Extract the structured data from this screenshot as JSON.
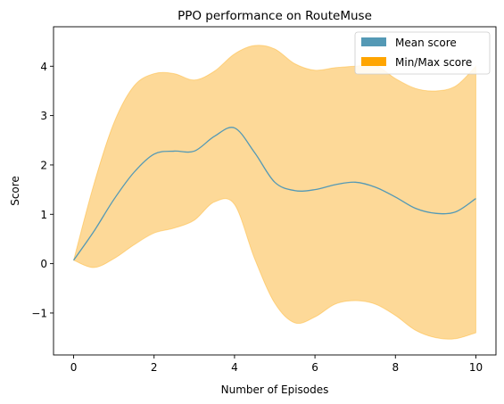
{
  "chart_data": {
    "type": "area",
    "title": "PPO performance on RouteMuse",
    "xlabel": "Number of Episodes",
    "ylabel": "Score",
    "xlim": [
      -0.5,
      10.5
    ],
    "ylim": [
      -1.85,
      4.8
    ],
    "xticks": [
      0,
      2,
      4,
      6,
      8,
      10
    ],
    "xtick_labels": [
      "0",
      "2",
      "4",
      "6",
      "8",
      "10"
    ],
    "yticks": [
      -1,
      0,
      1,
      2,
      3,
      4
    ],
    "ytick_labels": [
      "−1",
      "0",
      "1",
      "2",
      "3",
      "4"
    ],
    "grid": false,
    "legend_position": "top-right",
    "colors": {
      "mean": "#5499b5",
      "band": "#ffa500",
      "band_fill": "#fdd998"
    },
    "series": [
      {
        "name": "Mean score",
        "x": [
          0,
          0.5,
          1,
          1.5,
          2,
          2.5,
          3,
          3.5,
          4,
          4.5,
          5,
          5.5,
          6,
          6.5,
          7,
          7.5,
          8,
          8.5,
          9,
          9.5,
          10
        ],
        "values": [
          0.07,
          0.65,
          1.3,
          1.85,
          2.22,
          2.28,
          2.28,
          2.58,
          2.75,
          2.25,
          1.65,
          1.48,
          1.5,
          1.6,
          1.65,
          1.55,
          1.35,
          1.12,
          1.02,
          1.05,
          1.32
        ]
      },
      {
        "name": "Min/Max score",
        "x": [
          0,
          0.5,
          1,
          1.5,
          2,
          2.5,
          3,
          3.5,
          4,
          4.5,
          5,
          5.5,
          6,
          6.5,
          7,
          7.5,
          8,
          8.5,
          9,
          9.5,
          10
        ],
        "min": [
          0.07,
          -0.08,
          0.1,
          0.38,
          0.62,
          0.72,
          0.88,
          1.25,
          1.2,
          0.1,
          -0.8,
          -1.2,
          -1.08,
          -0.82,
          -0.75,
          -0.82,
          -1.05,
          -1.35,
          -1.5,
          -1.52,
          -1.4
        ],
        "max": [
          0.07,
          1.6,
          2.85,
          3.6,
          3.85,
          3.85,
          3.72,
          3.9,
          4.25,
          4.42,
          4.35,
          4.05,
          3.92,
          3.97,
          4.0,
          4.02,
          3.75,
          3.55,
          3.5,
          3.6,
          4.0
        ]
      }
    ]
  }
}
